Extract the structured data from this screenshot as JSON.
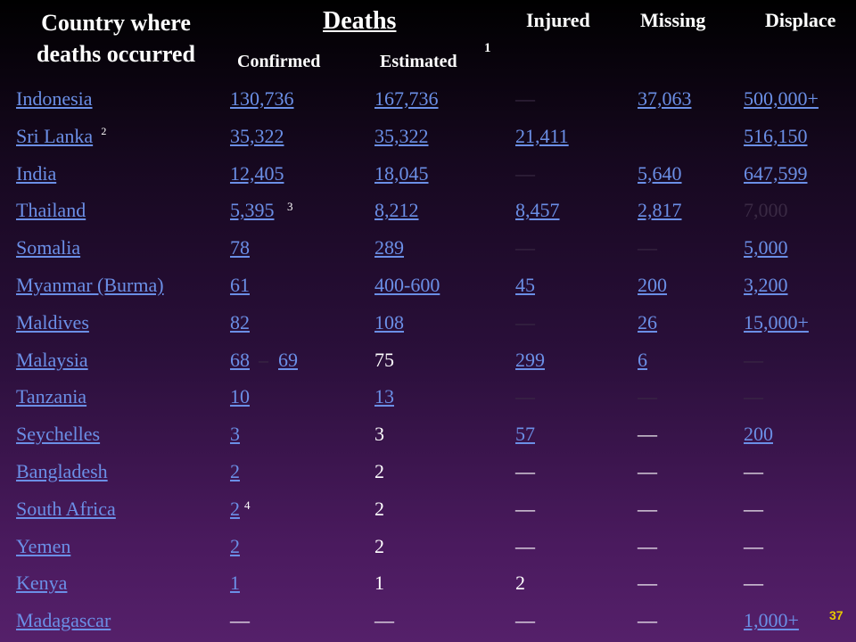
{
  "headers": {
    "country_line1": "Country where",
    "country_line2": "deaths occurred",
    "deaths": "Deaths",
    "injured": "Injured",
    "missing": "Missing",
    "displaced": "Displace",
    "confirmed": "Confirmed",
    "estimated": "Estimated",
    "estimated_note": "1"
  },
  "rows": [
    {
      "country": "Indonesia",
      "confirmed": "130,736",
      "estimated": "167,736",
      "injured": "—",
      "missing": "37,063",
      "displaced": "500,000+"
    },
    {
      "country": "Sri Lanka",
      "country_note": "2",
      "confirmed": "35,322",
      "estimated": "35,322",
      "injured": "21,411",
      "missing": "",
      "displaced": "516,150"
    },
    {
      "country": "India",
      "confirmed": "12,405",
      "estimated": "18,045",
      "injured": "—",
      "missing": "5,640",
      "displaced": "647,599"
    },
    {
      "country": "Thailand",
      "confirmed": "5,395",
      "confirmed_note": "3",
      "estimated": "8,212",
      "injured": "8,457",
      "missing": "2,817",
      "displaced": "7,000"
    },
    {
      "country": "Somalia",
      "confirmed": "78",
      "estimated": "289",
      "injured": "—",
      "missing": "—",
      "displaced": "5,000"
    },
    {
      "country": "Myanmar (Burma)",
      "confirmed": "61",
      "estimated": "400-600",
      "injured": "45",
      "missing": "200",
      "displaced": "3,200"
    },
    {
      "country": "Maldives",
      "confirmed": "82",
      "estimated": "108",
      "injured": "—",
      "missing": "26",
      "displaced": "15,000+"
    },
    {
      "country": "Malaysia",
      "confirmed": "68",
      "confirmed_sep": "–",
      "confirmed_alt": "69",
      "estimated": "75",
      "injured": "299",
      "missing": "6",
      "displaced": "—"
    },
    {
      "country": "Tanzania",
      "confirmed": "10",
      "estimated": "13",
      "injured": "—",
      "missing": "—",
      "displaced": "—"
    },
    {
      "country": "Seychelles",
      "confirmed": "3",
      "estimated": "3",
      "injured": "57",
      "missing": "—",
      "displaced": "200"
    },
    {
      "country": "Bangladesh",
      "confirmed": "2",
      "estimated": "2",
      "injured": "—",
      "missing": "—",
      "displaced": "—"
    },
    {
      "country": "South Africa",
      "confirmed": "2",
      "confirmed_note": "4",
      "estimated": "2",
      "injured": "—",
      "missing": "—",
      "displaced": "—"
    },
    {
      "country": "Yemen",
      "confirmed": "2",
      "estimated": "2",
      "injured": "—",
      "missing": "—",
      "displaced": "—"
    },
    {
      "country": "Kenya",
      "confirmed": "1",
      "estimated": "1",
      "injured": "2",
      "missing": "—",
      "displaced": "—"
    },
    {
      "country": "Madagascar",
      "confirmed": "—",
      "estimated": "—",
      "injured": "—",
      "missing": "—",
      "displaced": "1,000+"
    }
  ],
  "page_number": "37",
  "colors": {
    "link": "#6b8fe6",
    "text": "#ffffff",
    "dim": "#3a2a44",
    "page_number": "#e8c800"
  }
}
